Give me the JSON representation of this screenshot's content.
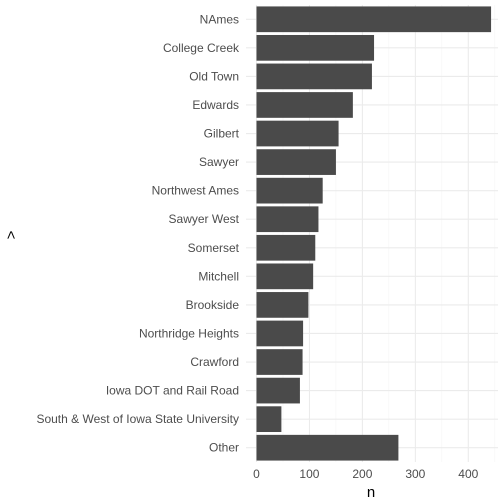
{
  "chart_data": {
    "type": "bar",
    "orientation": "horizontal",
    "categories": [
      "NAmes",
      "College Creek",
      "Old Town",
      "Edwards",
      "Gilbert",
      "Sawyer",
      "Northwest Ames",
      "Sawyer West",
      "Somerset",
      "Mitchell",
      "Brookside",
      "Northridge Heights",
      "Crawford",
      "Iowa DOT and Rail Road",
      "South & West of Iowa State University",
      "Other"
    ],
    "values": [
      443,
      222,
      218,
      182,
      155,
      150,
      125,
      117,
      111,
      107,
      98,
      88,
      87,
      82,
      47,
      268
    ],
    "xlabel": "n",
    "ylabel": ">",
    "xlim": [
      0,
      443
    ],
    "xticks": [
      0,
      100,
      200,
      300,
      400
    ],
    "bar_color": "#4a4a4a",
    "grid": true
  }
}
